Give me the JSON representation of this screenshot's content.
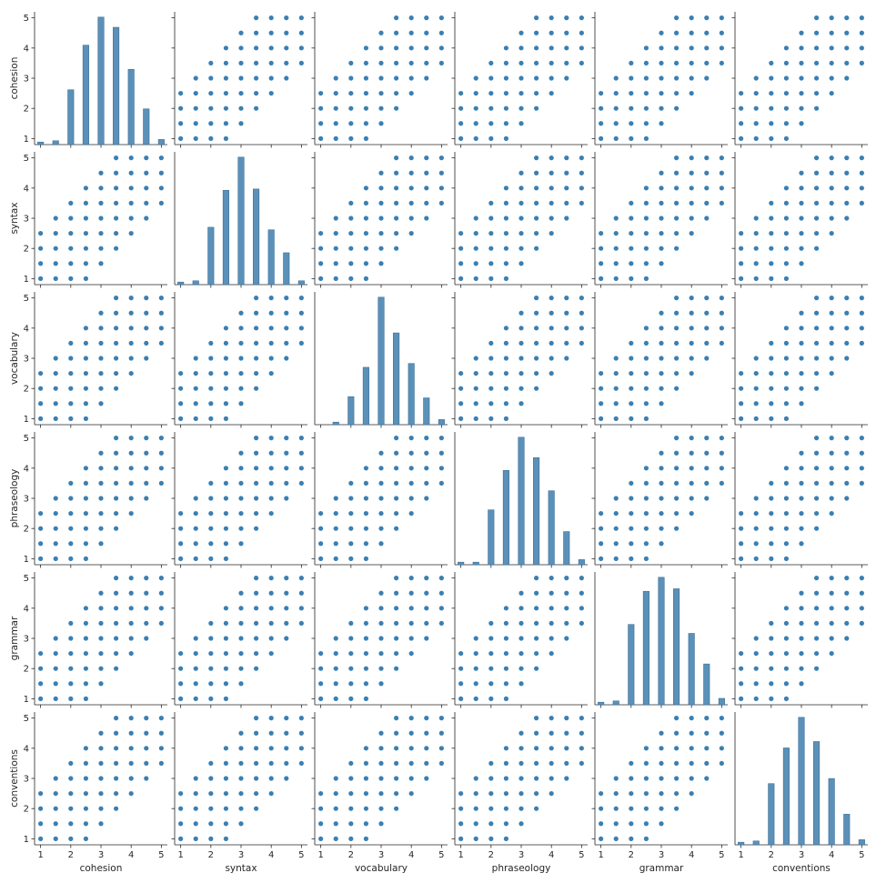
{
  "chart_data": {
    "type": "scatter",
    "variables": [
      "cohesion",
      "syntax",
      "vocabulary",
      "phraseology",
      "grammar",
      "conventions"
    ],
    "axis_range": [
      1,
      5
    ],
    "ticks": [
      1,
      2,
      3,
      4,
      5
    ],
    "tick_labels": [
      "1",
      "2",
      "3",
      "4",
      "5"
    ],
    "grid": false,
    "diagonal": {
      "type": "histogram",
      "bins": [
        1,
        1.5,
        2,
        2.5,
        3,
        3.5,
        4,
        4.5,
        5
      ],
      "relative_heights": {
        "cohesion": [
          0.02,
          0.03,
          0.43,
          0.78,
          1.0,
          0.92,
          0.59,
          0.28,
          0.04
        ],
        "syntax": [
          0.02,
          0.03,
          0.45,
          0.74,
          1.0,
          0.75,
          0.43,
          0.25,
          0.03
        ],
        "vocabulary": [
          0.0,
          0.02,
          0.22,
          0.45,
          1.0,
          0.72,
          0.48,
          0.21,
          0.04
        ],
        "phraseology": [
          0.02,
          0.02,
          0.43,
          0.74,
          1.0,
          0.84,
          0.58,
          0.26,
          0.04
        ],
        "grammar": [
          0.02,
          0.03,
          0.63,
          0.89,
          1.0,
          0.91,
          0.56,
          0.32,
          0.05
        ],
        "conventions": [
          0.02,
          0.03,
          0.48,
          0.76,
          1.0,
          0.81,
          0.52,
          0.24,
          0.04
        ]
      }
    },
    "off_diagonal": {
      "type": "scatter",
      "max_level_difference": 1.5,
      "grid_step": 0.5
    },
    "colors": {
      "points": "#3a7fb3",
      "bars": "#5b91b8",
      "bar_edges": "#3c6f99",
      "axes": "#262626"
    }
  }
}
